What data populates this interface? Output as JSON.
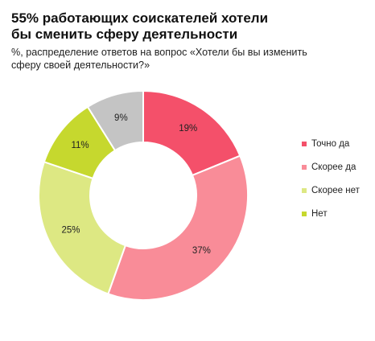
{
  "title_line1": "55% работающих соискателей хотели",
  "title_line2": "бы сменить сферу деятельности",
  "subtitle_line1": "%, распределение ответов на вопрос «Хотели бы вы изменить",
  "subtitle_line2": "сферу своей деятельности?»",
  "chart_data": {
    "type": "pie",
    "variant": "donut",
    "title": "55% работающих соискателей хотели бы сменить сферу деятельности",
    "subtitle": "%, распределение ответов на вопрос «Хотели бы вы изменить сферу своей деятельности?»",
    "unit": "%",
    "legend_position": "right",
    "slices": [
      {
        "label": "Точно да",
        "value": 19,
        "display": "19%",
        "color": "#f4506a"
      },
      {
        "label": "Скорее да",
        "value": 37,
        "display": "37%",
        "color": "#f98c98"
      },
      {
        "label": "Скорее нет",
        "value": 25,
        "display": "25%",
        "color": "#dde883"
      },
      {
        "label": "Нет",
        "value": 11,
        "display": "11%",
        "color": "#c6d82e"
      },
      {
        "label": "",
        "value": 9,
        "display": "9%",
        "color": "#c4c4c4"
      }
    ]
  }
}
